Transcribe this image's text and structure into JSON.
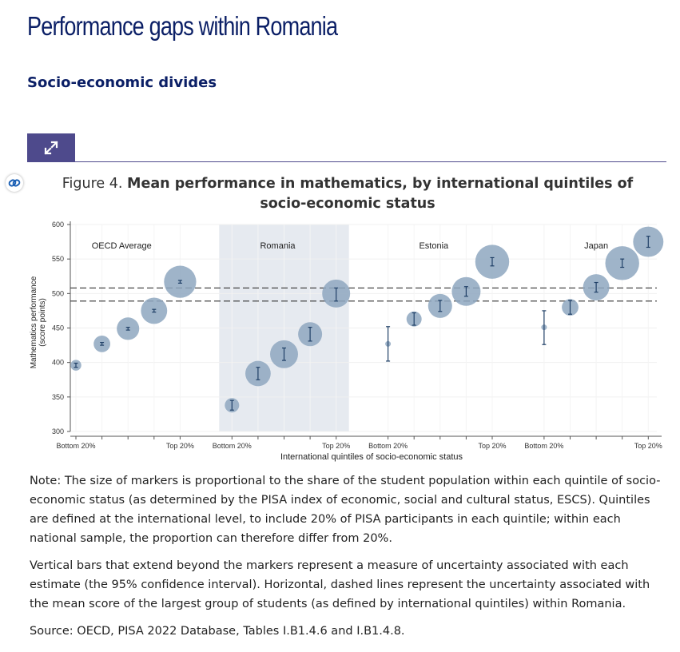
{
  "page": {
    "title": "Performance gaps within Romania",
    "section": "Socio-economic divides"
  },
  "figure": {
    "number": "Figure 4.",
    "title": "Mean performance in mathematics, by international quintiles of socio-economic status"
  },
  "colors": {
    "title": "#0b1f66",
    "tab": "#4e4a8c",
    "bubble": "#8ea7bf",
    "errorbar": "#1f3f66",
    "highlight": "#e6eaf0"
  },
  "icons": {
    "expand": "expand-icon",
    "link": "link-icon"
  },
  "chart_data": {
    "type": "scatter",
    "title": "Mean performance in mathematics, by international quintiles of socio-economic status",
    "xlabel": "International quintiles of socio-economic status",
    "ylabel_lines": [
      "Mathematics performance",
      "(score points)"
    ],
    "ylim": [
      300,
      600
    ],
    "yticks": [
      300,
      350,
      400,
      450,
      500,
      550,
      600
    ],
    "highlighted_group": "Romania",
    "reference_lines": [
      489,
      508
    ],
    "groups": [
      {
        "name": "OECD Average",
        "quintile_labels": [
          "Bottom 20%",
          "",
          "",
          "",
          "Top 20%"
        ],
        "points": [
          {
            "y": 396,
            "lo": 393,
            "hi": 399,
            "share": 0.05
          },
          {
            "y": 427,
            "lo": 425,
            "hi": 429,
            "share": 0.12
          },
          {
            "y": 449,
            "lo": 447,
            "hi": 451,
            "share": 0.22
          },
          {
            "y": 475,
            "lo": 473,
            "hi": 477,
            "share": 0.3
          },
          {
            "y": 517,
            "lo": 515,
            "hi": 519,
            "share": 0.45
          }
        ]
      },
      {
        "name": "Romania",
        "quintile_labels": [
          "Bottom 20%",
          "",
          "",
          "",
          "Top 20%"
        ],
        "points": [
          {
            "y": 338,
            "lo": 331,
            "hi": 345,
            "share": 0.09
          },
          {
            "y": 384,
            "lo": 375,
            "hi": 393,
            "share": 0.28
          },
          {
            "y": 412,
            "lo": 403,
            "hi": 421,
            "share": 0.34
          },
          {
            "y": 441,
            "lo": 431,
            "hi": 451,
            "share": 0.25
          },
          {
            "y": 500,
            "lo": 489,
            "hi": 508,
            "share": 0.34
          }
        ]
      },
      {
        "name": "Estonia",
        "quintile_labels": [
          "Bottom 20%",
          "",
          "",
          "",
          "Top 20%"
        ],
        "points": [
          {
            "y": 427,
            "lo": 402,
            "hi": 452,
            "share": 0.01
          },
          {
            "y": 463,
            "lo": 454,
            "hi": 472,
            "share": 0.1
          },
          {
            "y": 482,
            "lo": 474,
            "hi": 490,
            "share": 0.25
          },
          {
            "y": 503,
            "lo": 496,
            "hi": 510,
            "share": 0.36
          },
          {
            "y": 546,
            "lo": 540,
            "hi": 552,
            "share": 0.5
          }
        ]
      },
      {
        "name": "Japan",
        "quintile_labels": [
          "Bottom 20%",
          "",
          "",
          "",
          "Top 20%"
        ],
        "points": [
          {
            "y": 451,
            "lo": 426,
            "hi": 475,
            "share": 0.01
          },
          {
            "y": 480,
            "lo": 470,
            "hi": 490,
            "share": 0.12
          },
          {
            "y": 509,
            "lo": 502,
            "hi": 516,
            "share": 0.3
          },
          {
            "y": 544,
            "lo": 538,
            "hi": 550,
            "share": 0.5
          },
          {
            "y": 575,
            "lo": 567,
            "hi": 583,
            "share": 0.4
          }
        ]
      }
    ]
  },
  "notes": [
    "Note: The size of markers is proportional to the share of the student population within each quintile of socio-economic status (as determined by the PISA index of economic, social and cultural status, ESCS). Quintiles are defined at the international level, to include 20% of PISA participants in each quintile; within each national sample, the proportion can therefore differ from 20%.",
    "Vertical bars that extend beyond the markers represent a measure of uncertainty associated with each estimate (the 95% confidence interval). Horizontal, dashed lines represent the uncertainty associated with the mean score of the largest group of students (as defined by international quintiles) within Romania.",
    "Source: OECD, PISA 2022 Database, Tables I.B1.4.6 and I.B1.4.8."
  ]
}
